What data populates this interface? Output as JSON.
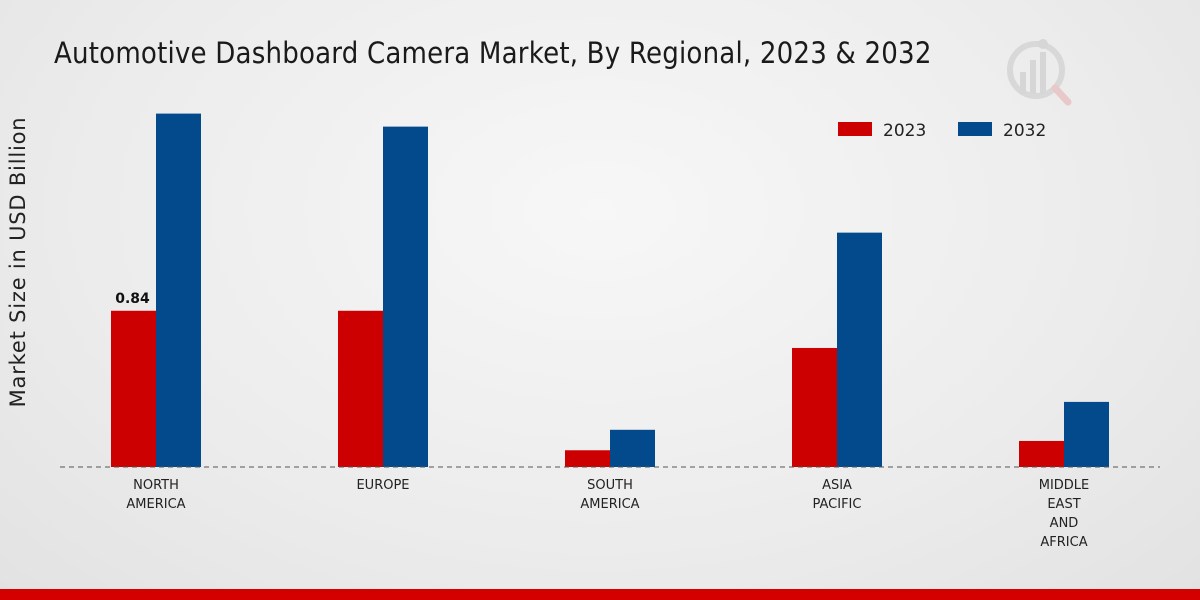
{
  "title": "Automotive Dashboard Camera Market, By Regional, 2023 & 2032",
  "colors": {
    "2023": "#cc0000",
    "2032": "#034a8c",
    "accent_bar": "#d40000"
  },
  "watermark_icon": "bar-chart-logo-icon",
  "chart_data": {
    "type": "bar",
    "title": "Automotive Dashboard Camera Market, By Regional, 2023 & 2032",
    "xlabel": "",
    "ylabel": "Market Size in USD Billion",
    "categories": [
      [
        "NORTH",
        "AMERICA"
      ],
      [
        "EUROPE"
      ],
      [
        "SOUTH",
        "AMERICA"
      ],
      [
        "ASIA",
        "PACIFIC"
      ],
      [
        "MIDDLE",
        "EAST",
        "AND",
        "AFRICA"
      ]
    ],
    "series": [
      {
        "name": "2023",
        "color": "#cc0000",
        "values": [
          0.84,
          0.84,
          0.09,
          0.64,
          0.14
        ]
      },
      {
        "name": "2032",
        "color": "#034a8c",
        "values": [
          1.9,
          1.83,
          0.2,
          1.26,
          0.35
        ]
      }
    ],
    "data_labels": [
      {
        "series": 0,
        "index": 0,
        "text": "0.84"
      }
    ],
    "ylim": [
      0,
      2.0
    ],
    "grid": false,
    "legend": "top-right",
    "baseline": "dashed"
  }
}
